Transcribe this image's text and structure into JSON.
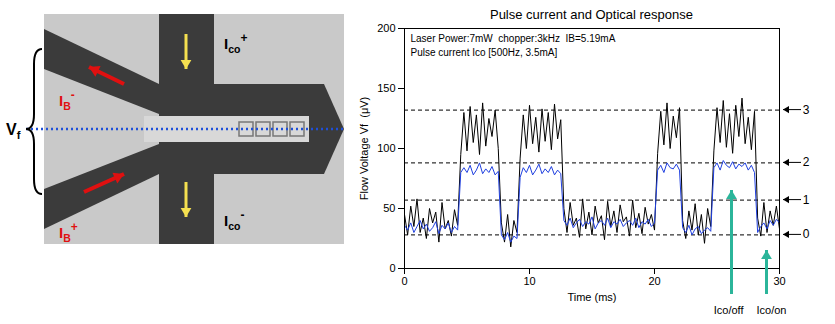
{
  "diagram": {
    "labels": {
      "Vf": {
        "base": "V",
        "sub": "f",
        "color": "#000000"
      },
      "IB_minus": {
        "base": "I",
        "sub": "B",
        "sup": "-",
        "color": "#e01010"
      },
      "IB_plus": {
        "base": "I",
        "sub": "B",
        "sup": "+",
        "color": "#e01010"
      },
      "Ico_plus": {
        "base": "I",
        "sub": "co",
        "sup": "+",
        "color": "#000000"
      },
      "Ico_minus": {
        "base": "I",
        "sub": "co",
        "sup": "-",
        "color": "#000000"
      }
    }
  },
  "chart_data": {
    "type": "line",
    "title": "Pulse current and Optical response",
    "annotations_text": [
      "Laser Power:7mW  chopper:3kHz  IB=5.19mA",
      "Pulse current Ico [500Hz, 3.5mA]"
    ],
    "xlabel": "Time (ms)",
    "ylabel": "Flow Voltage Vf  (μV)",
    "xlim": [
      0,
      30
    ],
    "xticks": [
      0,
      10,
      20,
      30
    ],
    "ylim": [
      0,
      200
    ],
    "yticks": [
      0,
      50,
      100,
      150,
      200
    ],
    "grid": false,
    "x": [
      0,
      0.25,
      0.5,
      0.75,
      1,
      1.25,
      1.5,
      1.75,
      2,
      2.25,
      2.5,
      2.75,
      3,
      3.25,
      3.5,
      3.75,
      4,
      4.25,
      4.5,
      4.75,
      5,
      5.25,
      5.5,
      5.75,
      6,
      6.25,
      6.5,
      6.75,
      7,
      7.25,
      7.5,
      7.75,
      8,
      8.25,
      8.5,
      8.75,
      9,
      9.25,
      9.5,
      9.75,
      10,
      10.25,
      10.5,
      10.75,
      11,
      11.25,
      11.5,
      11.75,
      12,
      12.25,
      12.5,
      12.75,
      13,
      13.25,
      13.5,
      13.75,
      14,
      14.25,
      14.5,
      14.75,
      15,
      15.25,
      15.5,
      15.75,
      16,
      16.25,
      16.5,
      16.75,
      17,
      17.25,
      17.5,
      17.75,
      18,
      18.25,
      18.5,
      18.75,
      19,
      19.25,
      19.5,
      19.75,
      20,
      20.25,
      20.5,
      20.75,
      21,
      21.25,
      21.5,
      21.75,
      22,
      22.25,
      22.5,
      22.75,
      23,
      23.25,
      23.5,
      23.75,
      24,
      24.25,
      24.5,
      24.75,
      25,
      25.25,
      25.5,
      25.75,
      26,
      26.25,
      26.5,
      26.75,
      27,
      27.25,
      27.5,
      27.75,
      28,
      28.25,
      28.5,
      28.75,
      29,
      29.25,
      29.5,
      29.75,
      30
    ],
    "series": [
      {
        "color": "#000000",
        "line_style": "solid",
        "values": [
          45,
          28,
          52,
          35,
          58,
          30,
          42,
          25,
          50,
          38,
          47,
          22,
          55,
          33,
          40,
          27,
          49,
          36,
          95,
          130,
          98,
          135,
          105,
          128,
          95,
          138,
          102,
          125,
          110,
          132,
          100,
          38,
          22,
          45,
          18,
          40,
          30,
          92,
          128,
          100,
          136,
          104,
          126,
          97,
          133,
          106,
          130,
          99,
          137,
          108,
          124,
          50,
          30,
          55,
          36,
          42,
          26,
          58,
          33,
          47,
          28,
          52,
          38,
          44,
          24,
          56,
          35,
          48,
          30,
          53,
          39,
          43,
          27,
          57,
          34,
          46,
          29,
          51,
          37,
          45,
          32,
          96,
          131,
          103,
          138,
          100,
          127,
          109,
          134,
          40,
          25,
          48,
          32,
          54,
          28,
          45,
          21,
          50,
          35,
          98,
          134,
          105,
          140,
          101,
          129,
          96,
          136,
          110,
          142,
          104,
          126,
          99,
          131,
          42,
          27,
          55,
          30,
          48,
          36,
          52,
          33
        ]
      },
      {
        "color": "#1f3fe0",
        "line_style": "solid",
        "values": [
          36,
          32,
          38,
          30,
          35,
          40,
          33,
          37,
          31,
          34,
          39,
          29,
          36,
          33,
          38,
          30,
          35,
          32,
          80,
          84,
          80,
          86,
          78,
          82,
          88,
          79,
          83,
          80,
          85,
          78,
          81,
          28,
          24,
          30,
          22,
          27,
          25,
          76,
          84,
          80,
          86,
          78,
          82,
          87,
          79,
          83,
          80,
          85,
          78,
          82,
          79,
          40,
          36,
          42,
          34,
          38,
          41,
          35,
          39,
          37,
          43,
          33,
          38,
          40,
          36,
          42,
          34,
          39,
          37,
          41,
          35,
          38,
          40,
          36,
          42,
          34,
          39,
          37,
          41,
          35,
          38,
          82,
          86,
          80,
          88,
          84,
          83,
          87,
          82,
          34,
          30,
          36,
          28,
          33,
          35,
          29,
          32,
          34,
          31,
          84,
          88,
          82,
          90,
          86,
          84,
          89,
          83,
          87,
          85,
          88,
          82,
          86,
          80,
          30,
          35,
          38,
          33,
          40,
          36,
          41,
          38
        ]
      }
    ],
    "reference_lines": [
      {
        "value": 28,
        "label": "0",
        "line_style": "dashed",
        "color": "#000000"
      },
      {
        "value": 57,
        "label": "1",
        "line_style": "dashed",
        "color": "#000000"
      },
      {
        "value": 88,
        "label": "2",
        "line_style": "dashed",
        "color": "#000000"
      },
      {
        "value": 132,
        "label": "3",
        "line_style": "dashed",
        "color": "#000000"
      }
    ],
    "arrow_annotations": [
      {
        "text": "Ico/off",
        "x": 26.2,
        "y": 65,
        "color": "#2bb59a"
      },
      {
        "text": "Ico/on",
        "x": 29,
        "y": 15,
        "color": "#2bb59a"
      }
    ]
  }
}
